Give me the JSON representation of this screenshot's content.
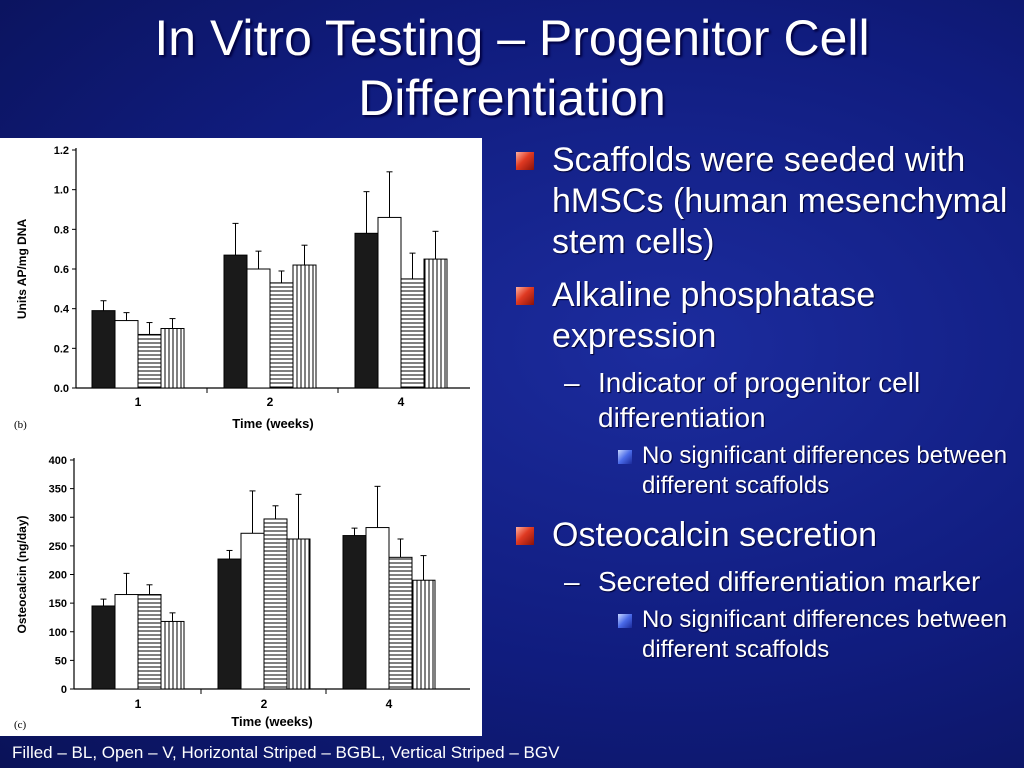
{
  "slide": {
    "title_line1": "In Vitro Testing – Progenitor Cell",
    "title_line2": "Differentiation",
    "footnote": "Filled – BL, Open – V, Horizontal Striped – BGBL, Vertical Striped – BGV"
  },
  "bullets": {
    "b1": "Scaffolds were seeded with hMSCs (human mesenchymal stem cells)",
    "b2": "Alkaline phosphatase expression",
    "b2_sub": "Indicator of progenitor cell differentiation",
    "b2_subsub": "No significant differences between different scaffolds",
    "b3": "Osteocalcin secretion",
    "b3_sub": "Secreted differentiation marker",
    "b3_subsub": "No significant differences between different scaffolds",
    "dash": "–"
  },
  "chart_data": [
    {
      "type": "bar",
      "panel": "(b)",
      "categories": [
        "1",
        "2",
        "4"
      ],
      "xlabel": "Time (weeks)",
      "ylabel": "Units AP/mg DNA",
      "ylim": [
        0,
        1.2
      ],
      "yticks": [
        "0.0",
        "0.2",
        "0.4",
        "0.6",
        "0.8",
        "1.0",
        "1.2"
      ],
      "series": [
        {
          "fill": "filled",
          "values": [
            0.39,
            0.67,
            0.78
          ],
          "errors": [
            0.05,
            0.16,
            0.21
          ]
        },
        {
          "fill": "open",
          "values": [
            0.34,
            0.6,
            0.86
          ],
          "errors": [
            0.04,
            0.09,
            0.23
          ]
        },
        {
          "fill": "horizontal-striped",
          "values": [
            0.27,
            0.53,
            0.55
          ],
          "errors": [
            0.06,
            0.06,
            0.13
          ]
        },
        {
          "fill": "vertical-striped",
          "values": [
            0.3,
            0.62,
            0.65
          ],
          "errors": [
            0.05,
            0.1,
            0.14
          ]
        }
      ]
    },
    {
      "type": "bar",
      "panel": "(c)",
      "categories": [
        "1",
        "2",
        "4"
      ],
      "xlabel": "Time (weeks)",
      "ylabel": "Osteocalcin (ng/day)",
      "ylim": [
        0,
        400
      ],
      "yticks": [
        "0",
        "50",
        "100",
        "150",
        "200",
        "250",
        "300",
        "350",
        "400"
      ],
      "series": [
        {
          "fill": "filled",
          "values": [
            145,
            227,
            268
          ],
          "errors": [
            12,
            15,
            13
          ]
        },
        {
          "fill": "open",
          "values": [
            165,
            272,
            282
          ],
          "errors": [
            37,
            74,
            72
          ]
        },
        {
          "fill": "horizontal-striped",
          "values": [
            165,
            297,
            230
          ],
          "errors": [
            17,
            23,
            32
          ]
        },
        {
          "fill": "vertical-striped",
          "values": [
            118,
            262,
            190
          ],
          "errors": [
            15,
            78,
            43
          ]
        }
      ]
    }
  ]
}
